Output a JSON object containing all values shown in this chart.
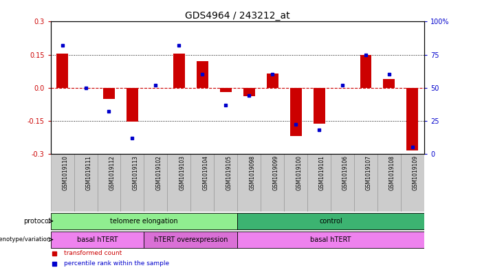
{
  "title": "GDS4964 / 243212_at",
  "samples": [
    "GSM1019110",
    "GSM1019111",
    "GSM1019112",
    "GSM1019113",
    "GSM1019102",
    "GSM1019103",
    "GSM1019104",
    "GSM1019105",
    "GSM1019098",
    "GSM1019099",
    "GSM1019100",
    "GSM1019101",
    "GSM1019106",
    "GSM1019107",
    "GSM1019108",
    "GSM1019109"
  ],
  "red_values": [
    0.155,
    0.0,
    -0.05,
    -0.155,
    0.0,
    0.155,
    0.12,
    -0.02,
    -0.04,
    0.065,
    -0.22,
    -0.165,
    0.0,
    0.15,
    0.04,
    -0.285
  ],
  "blue_values": [
    82,
    50,
    32,
    12,
    52,
    82,
    60,
    37,
    44,
    60,
    22,
    18,
    52,
    75,
    60,
    5
  ],
  "ylim_left": [
    -0.3,
    0.3
  ],
  "ylim_right": [
    0,
    100
  ],
  "yticks_left": [
    -0.3,
    -0.15,
    0.0,
    0.15,
    0.3
  ],
  "yticks_right": [
    0,
    25,
    50,
    75,
    100
  ],
  "ytick_labels_right": [
    "0",
    "25",
    "50",
    "75",
    "100%"
  ],
  "dotted_lines": [
    0.15,
    -0.15
  ],
  "protocol_groups": [
    {
      "label": "telomere elongation",
      "start": 0,
      "end": 8,
      "color": "#90EE90"
    },
    {
      "label": "control",
      "start": 8,
      "end": 16,
      "color": "#3CB371"
    }
  ],
  "genotype_groups": [
    {
      "label": "basal hTERT",
      "start": 0,
      "end": 4,
      "color": "#EE82EE"
    },
    {
      "label": "hTERT overexpression",
      "start": 4,
      "end": 8,
      "color": "#DA70D6"
    },
    {
      "label": "basal hTERT",
      "start": 8,
      "end": 16,
      "color": "#EE82EE"
    }
  ],
  "bar_color": "#CC0000",
  "dot_color": "#0000CC",
  "bg_color": "#FFFFFF",
  "label_color_left": "#CC0000",
  "label_color_right": "#0000CC",
  "bar_width": 0.5,
  "protocol_label_color": "#006600",
  "genotype_label_color": "#660066"
}
